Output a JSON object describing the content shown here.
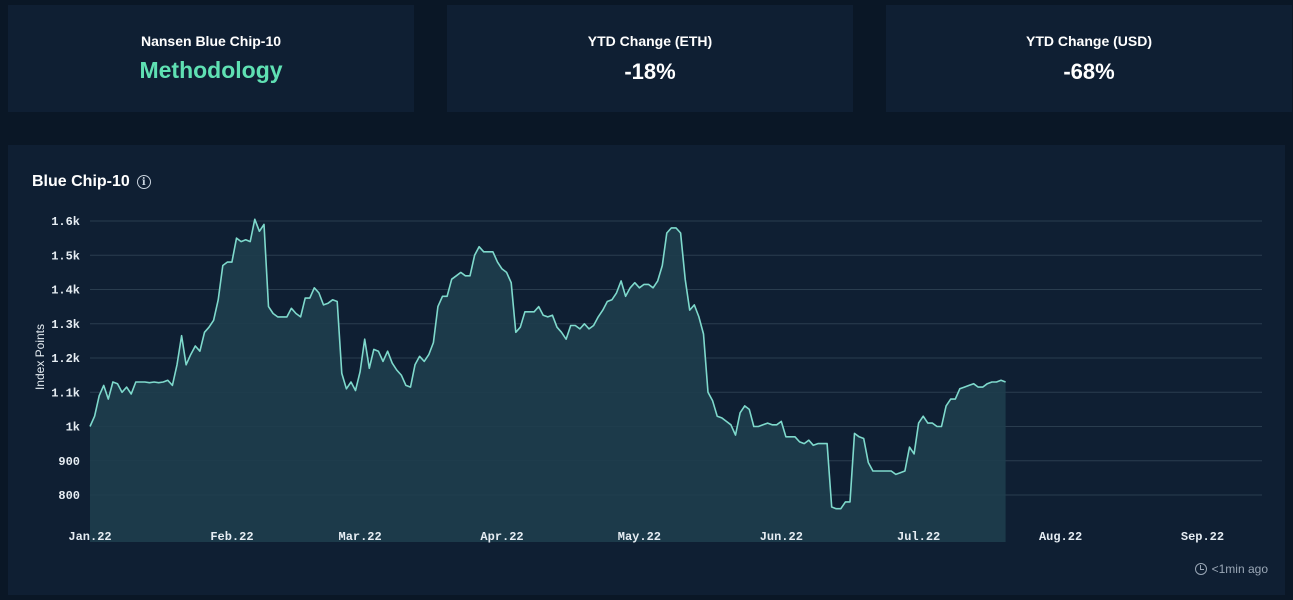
{
  "cards": [
    {
      "label": "Nansen Blue Chip-10",
      "value": "Methodology"
    },
    {
      "label": "YTD Change (ETH)",
      "value": "-18%"
    },
    {
      "label": "YTD Change (USD)",
      "value": "-68%"
    }
  ],
  "panel": {
    "title": "Blue Chip-10",
    "info_glyph": "i",
    "footer": "<1min ago"
  },
  "colors": {
    "line": "#7ed9cc",
    "fill": "#1e3d4d",
    "link": "#5fe0b3",
    "grid": "#2a3d4f"
  },
  "chart_data": {
    "type": "area",
    "title": "Blue Chip-10",
    "ylabel": "Index Points",
    "xlabel": "",
    "ylim": [
      690,
      1640
    ],
    "yticks": [
      800,
      900,
      1000,
      1100,
      1200,
      1300,
      1400,
      1500,
      1600
    ],
    "ytick_labels": [
      "800",
      "900",
      "1k",
      "1.1k",
      "1.2k",
      "1.3k",
      "1.4k",
      "1.5k",
      "1.6k"
    ],
    "xticks": [
      {
        "day": 0,
        "label": "Jan.22"
      },
      {
        "day": 31,
        "label": "Feb.22"
      },
      {
        "day": 59,
        "label": "Mar.22"
      },
      {
        "day": 90,
        "label": "Apr.22"
      },
      {
        "day": 120,
        "label": "May.22"
      },
      {
        "day": 151,
        "label": "Jun.22"
      },
      {
        "day": 181,
        "label": "Jul.22"
      },
      {
        "day": 212,
        "label": "Aug.22"
      },
      {
        "day": 243,
        "label": "Sep.22"
      }
    ],
    "grid": true,
    "series": [
      {
        "values": [
          1000,
          1030,
          1090,
          1120,
          1080,
          1130,
          1125,
          1100,
          1115,
          1095,
          1130,
          1130,
          1130,
          1128,
          1130,
          1128,
          1130,
          1135,
          1120,
          1180,
          1265,
          1180,
          1210,
          1235,
          1220,
          1275,
          1290,
          1310,
          1370,
          1470,
          1480,
          1480,
          1550,
          1540,
          1545,
          1540,
          1605,
          1570,
          1590,
          1350,
          1330,
          1320,
          1320,
          1320,
          1345,
          1330,
          1320,
          1375,
          1375,
          1405,
          1390,
          1355,
          1360,
          1370,
          1365,
          1155,
          1110,
          1130,
          1105,
          1160,
          1255,
          1170,
          1225,
          1220,
          1190,
          1220,
          1185,
          1165,
          1150,
          1120,
          1115,
          1180,
          1205,
          1190,
          1210,
          1245,
          1350,
          1380,
          1380,
          1430,
          1440,
          1450,
          1440,
          1440,
          1500,
          1525,
          1510,
          1510,
          1510,
          1480,
          1460,
          1450,
          1420,
          1275,
          1290,
          1335,
          1335,
          1335,
          1350,
          1325,
          1320,
          1325,
          1290,
          1275,
          1255,
          1295,
          1295,
          1285,
          1300,
          1285,
          1295,
          1320,
          1340,
          1365,
          1370,
          1390,
          1425,
          1380,
          1405,
          1420,
          1405,
          1415,
          1415,
          1405,
          1425,
          1470,
          1565,
          1580,
          1580,
          1565,
          1430,
          1340,
          1355,
          1320,
          1270,
          1100,
          1075,
          1030,
          1025,
          1015,
          1005,
          975,
          1040,
          1060,
          1050,
          1000,
          1000,
          1005,
          1010,
          1005,
          1005,
          1015,
          970,
          970,
          970,
          955,
          950,
          960,
          945,
          950,
          950,
          950,
          765,
          760,
          760,
          780,
          780,
          980,
          970,
          965,
          895,
          870,
          870,
          870,
          870,
          870,
          860,
          865,
          870,
          940,
          920,
          1010,
          1030,
          1010,
          1010,
          1000,
          1000,
          1060,
          1080,
          1080,
          1110,
          1115,
          1120,
          1125,
          1115,
          1115,
          1125,
          1130,
          1130,
          1135,
          1130
        ],
        "x_start": 0
      }
    ],
    "x_end": 256
  }
}
